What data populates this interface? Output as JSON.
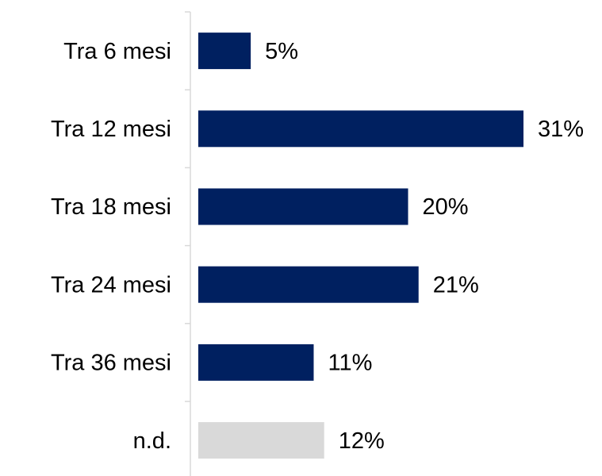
{
  "chart_data": {
    "type": "bar",
    "orientation": "horizontal",
    "categories": [
      "Tra 6 mesi",
      "Tra 12 mesi",
      "Tra 18 mesi",
      "Tra 24 mesi",
      "Tra 36 mesi",
      "n.d."
    ],
    "values": [
      5,
      31,
      20,
      21,
      11,
      12
    ],
    "value_labels": [
      "5%",
      "31%",
      "20%",
      "21%",
      "11%",
      "12%"
    ],
    "colors": [
      "#002060",
      "#002060",
      "#002060",
      "#002060",
      "#002060",
      "#d9d9d9"
    ]
  }
}
